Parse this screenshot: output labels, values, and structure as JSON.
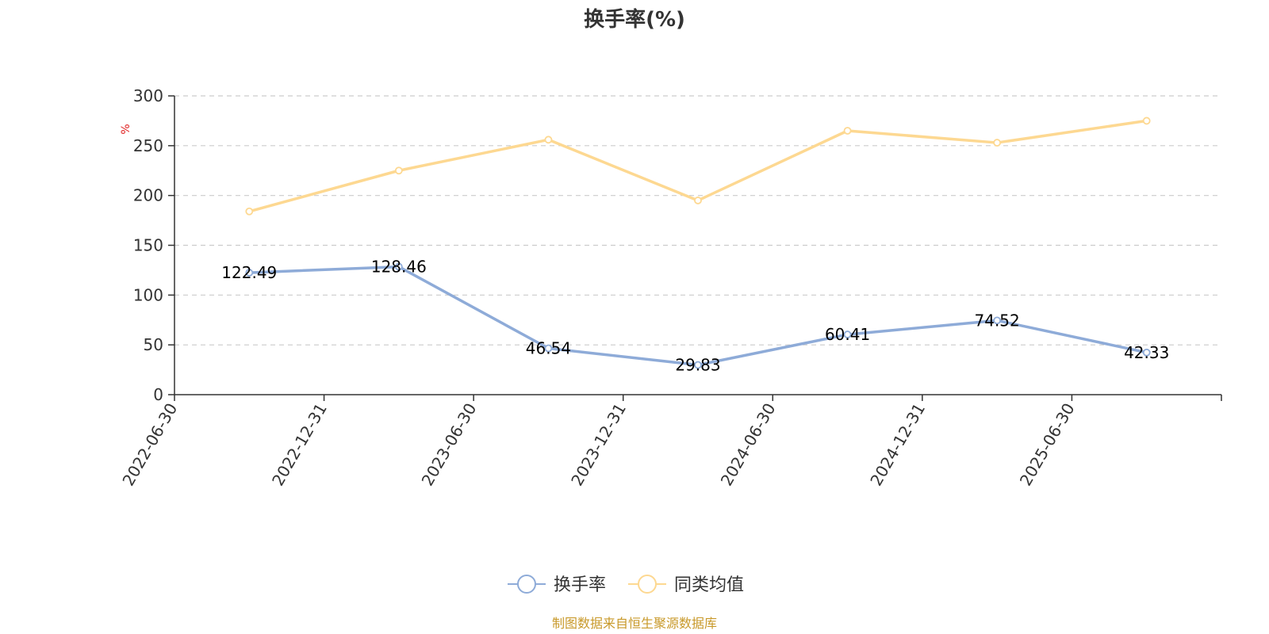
{
  "chart_data": {
    "type": "line",
    "title": "换手率(%)",
    "ylabel": "%",
    "ylim": [
      0,
      300
    ],
    "yticks": [
      0,
      50,
      100,
      150,
      200,
      250,
      300
    ],
    "categories": [
      "2022-06-30",
      "2022-12-31",
      "2023-06-30",
      "2023-12-31",
      "2024-06-30",
      "2024-12-31",
      "2025-06-30"
    ],
    "grid": true,
    "legend_position": "bottom-center",
    "series": [
      {
        "name": "换手率",
        "color": "#8eabd8",
        "values": [
          122.49,
          128.46,
          46.54,
          29.83,
          60.41,
          74.52,
          42.33
        ],
        "data_labels": [
          "122.49",
          "128.46",
          "46.54",
          "29.83",
          "60.41",
          "74.52",
          "42.33"
        ]
      },
      {
        "name": "同类均值",
        "color": "#fdd891",
        "values": [
          184,
          225,
          256,
          195,
          265,
          253,
          275
        ]
      }
    ]
  },
  "unit_color": "#e02020",
  "source": {
    "text": "制图数据来自恒生聚源数据库",
    "color": "#c8992a"
  }
}
